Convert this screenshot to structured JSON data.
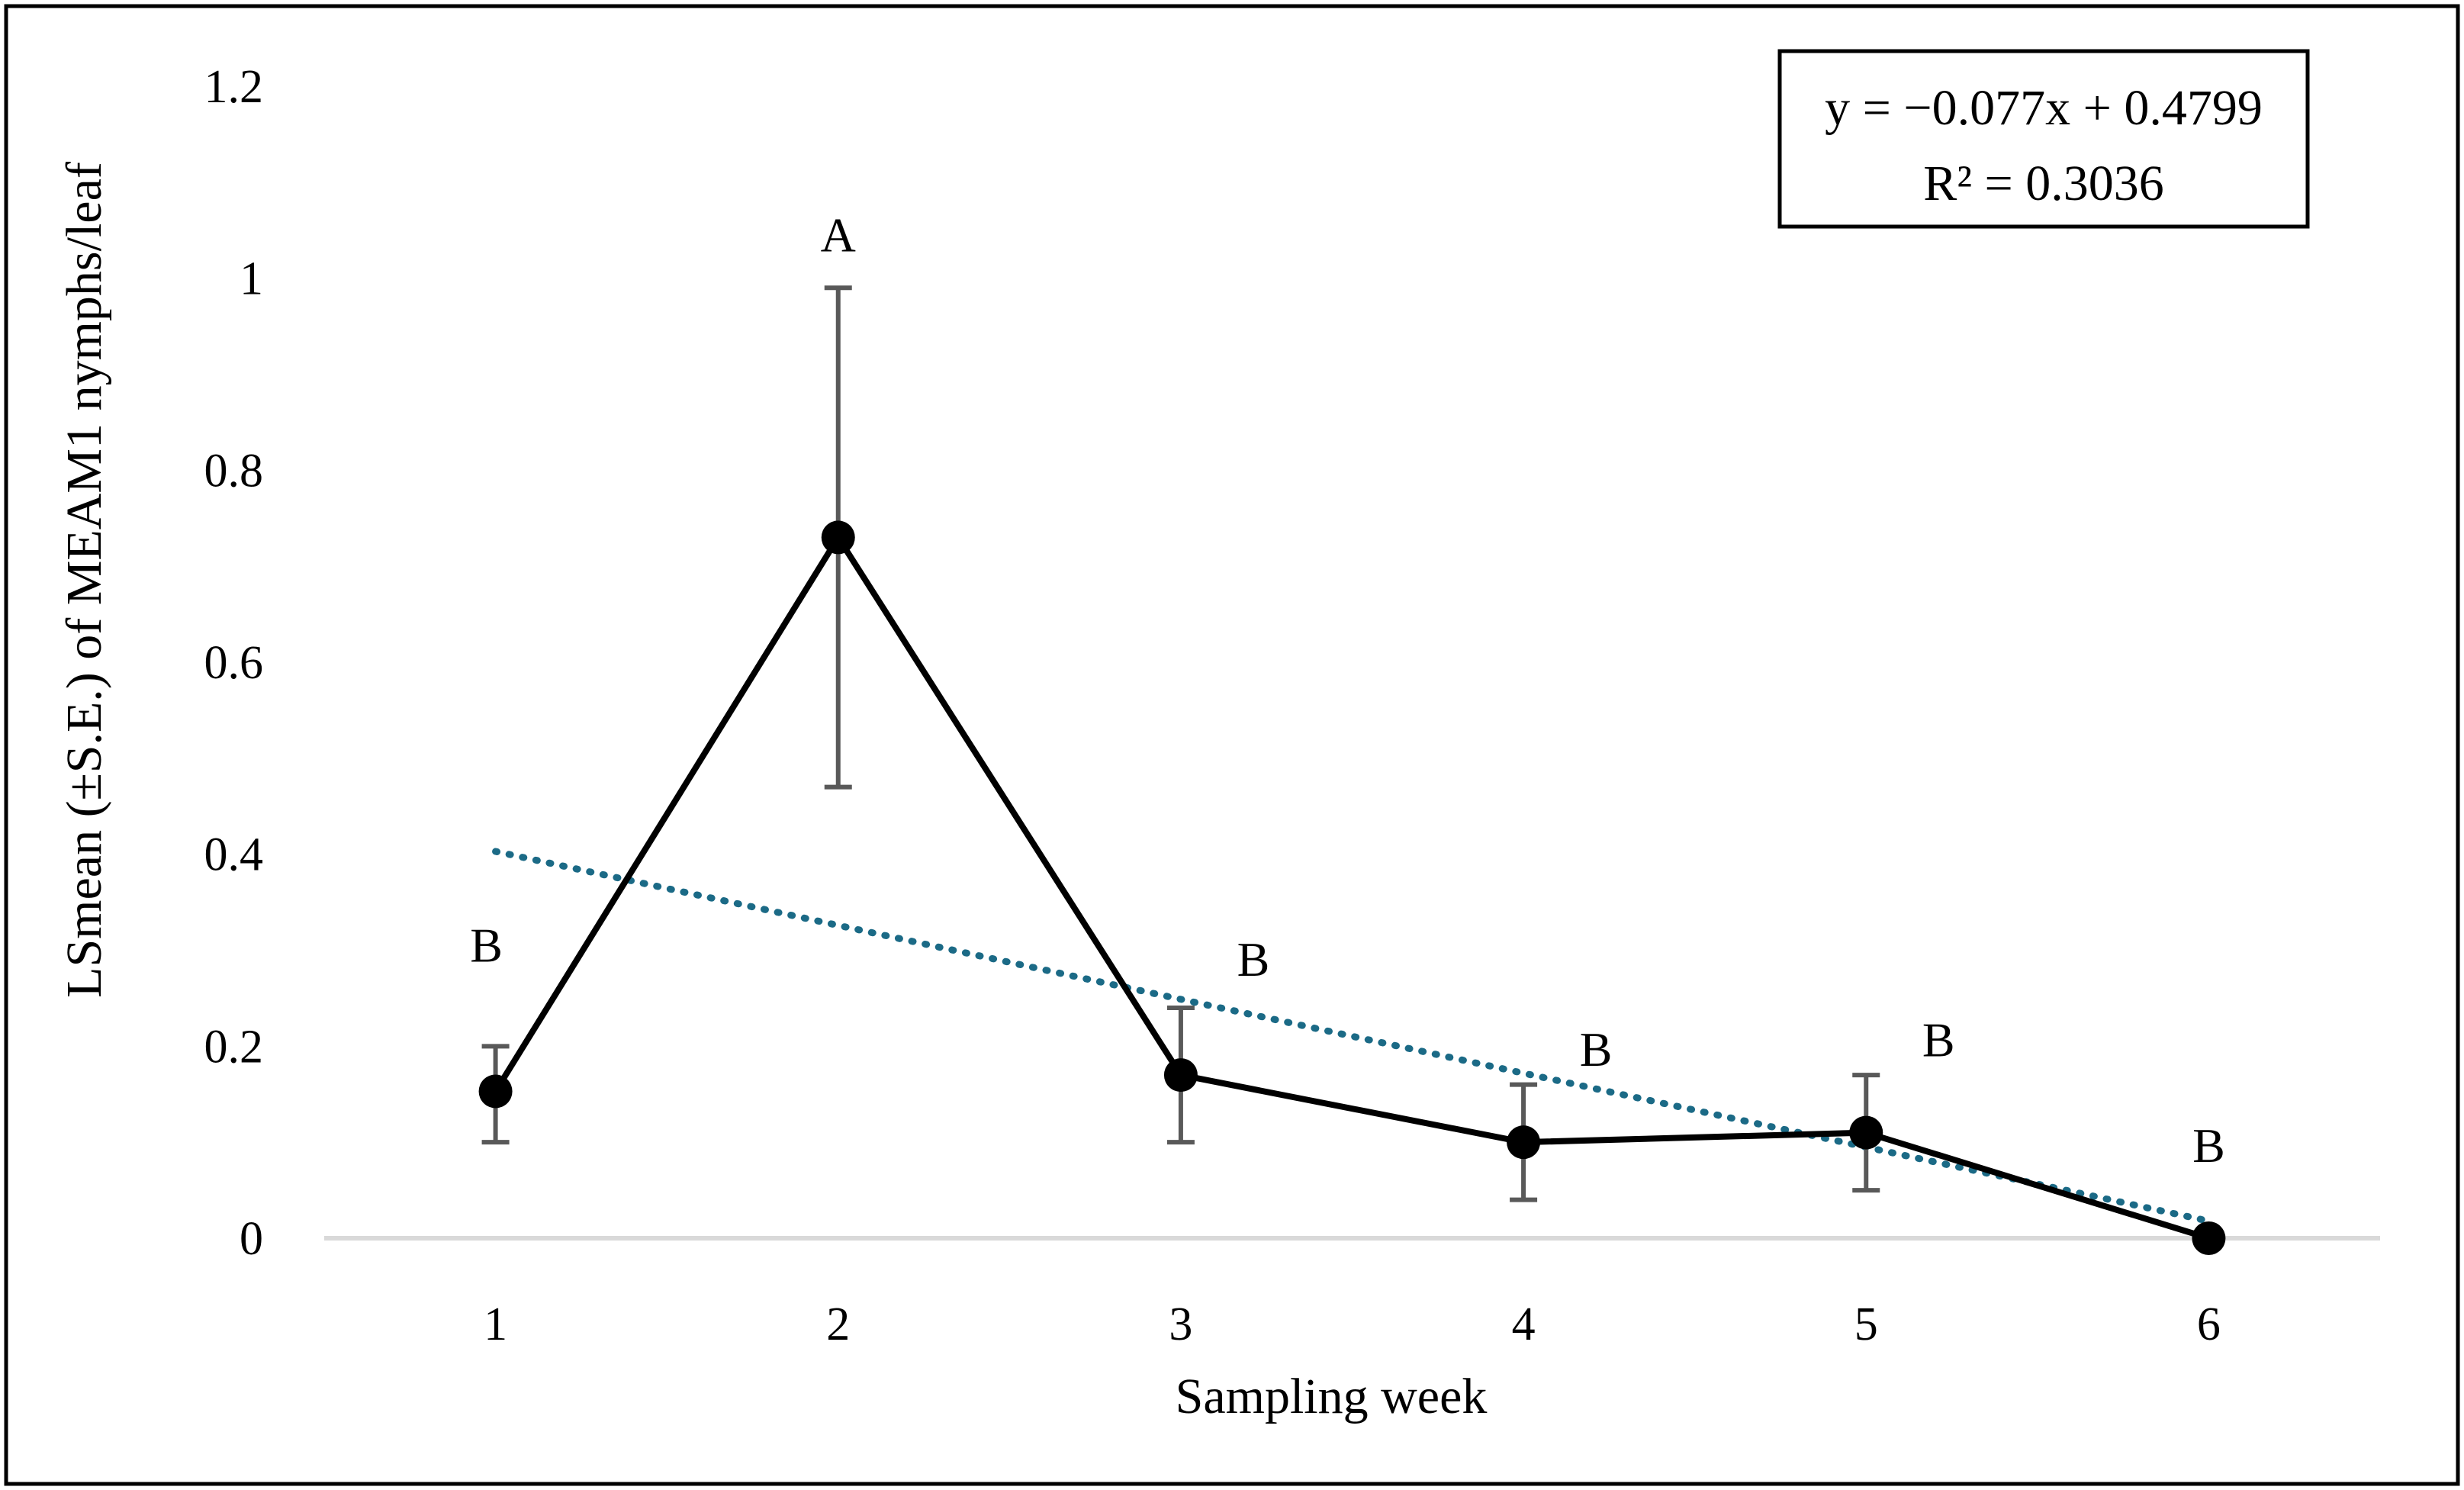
{
  "chart_data": {
    "type": "line",
    "xlabel": "Sampling week",
    "ylabel": "LSmean (±S.E.) of MEAM1 nymphs/leaf",
    "ylim": [
      0,
      1.2
    ],
    "yticks": [
      {
        "value": 0,
        "label": "0"
      },
      {
        "value": 0.2,
        "label": "0.2"
      },
      {
        "value": 0.4,
        "label": "0.4"
      },
      {
        "value": 0.6,
        "label": "0.6"
      },
      {
        "value": 0.8,
        "label": "0.8"
      },
      {
        "value": 1.0,
        "label": "1"
      },
      {
        "value": 1.2,
        "label": "1.2"
      }
    ],
    "categories": [
      "1",
      "2",
      "3",
      "4",
      "5",
      "6"
    ],
    "series": [
      {
        "name": "LSmean",
        "values": [
          0.153,
          0.73,
          0.17,
          0.1,
          0.11,
          0.0
        ],
        "se_low": [
          0.1,
          0.47,
          0.1,
          0.04,
          0.05,
          0.0
        ],
        "se_high": [
          0.2,
          0.99,
          0.24,
          0.16,
          0.17,
          0.0
        ],
        "letters": [
          "B",
          "A",
          "B",
          "B",
          "B",
          "B"
        ],
        "color": "#000000"
      }
    ],
    "trendline": {
      "slope": -0.077,
      "intercept": 0.4799,
      "color": "#1B6A86",
      "equation": "y = −0.077x + 0.4799",
      "r_squared": "R² = 0.3036"
    },
    "gridline_color": "#d9d9d9",
    "errorbar_color": "#595959"
  }
}
